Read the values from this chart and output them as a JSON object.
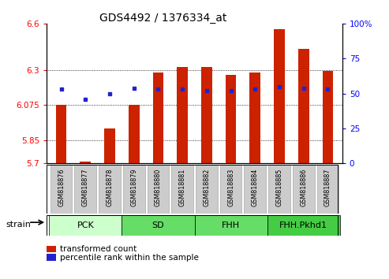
{
  "title": "GDS4492 / 1376334_at",
  "samples": [
    "GSM818876",
    "GSM818877",
    "GSM818878",
    "GSM818879",
    "GSM818880",
    "GSM818881",
    "GSM818882",
    "GSM818883",
    "GSM818884",
    "GSM818885",
    "GSM818886",
    "GSM818887"
  ],
  "red_values": [
    6.075,
    5.71,
    5.925,
    6.075,
    6.285,
    6.32,
    6.32,
    6.27,
    6.285,
    6.565,
    6.44,
    6.295
  ],
  "blue_values": [
    53,
    46,
    50,
    54,
    53,
    53,
    52,
    52,
    53,
    55,
    54,
    53
  ],
  "ylim_left": [
    5.7,
    6.6
  ],
  "ylim_right": [
    0,
    100
  ],
  "yticks_left": [
    5.7,
    5.85,
    6.075,
    6.3,
    6.6
  ],
  "ytick_labels_left": [
    "5.7",
    "5.85",
    "6.075",
    "6.3",
    "6.6"
  ],
  "yticks_right": [
    0,
    25,
    50,
    75,
    100
  ],
  "ytick_labels_right": [
    "0",
    "25",
    "50",
    "75",
    "100%"
  ],
  "hlines": [
    5.85,
    6.075,
    6.3
  ],
  "bar_color": "#cc2200",
  "dot_color": "#2222cc",
  "bar_width": 0.45,
  "bar_bottom": 5.7,
  "group_defs": [
    {
      "start": 0,
      "end": 2,
      "label": "PCK",
      "color": "#ccffcc"
    },
    {
      "start": 3,
      "end": 5,
      "label": "SD",
      "color": "#66dd66"
    },
    {
      "start": 6,
      "end": 8,
      "label": "FHH",
      "color": "#66dd66"
    },
    {
      "start": 9,
      "end": 11,
      "label": "FHH.Pkhd1",
      "color": "#44cc44"
    }
  ],
  "strain_label": "strain",
  "legend_items": [
    "transformed count",
    "percentile rank within the sample"
  ],
  "legend_colors": [
    "#cc2200",
    "#2222cc"
  ],
  "tick_bg_color": "#cccccc",
  "tick_bg_edge": "#aaaaaa"
}
